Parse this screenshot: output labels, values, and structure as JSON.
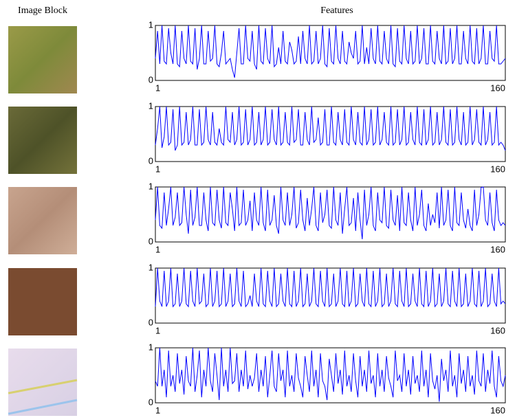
{
  "header": {
    "left": "Image Block",
    "right": "Features"
  },
  "chart_data": [
    {
      "type": "line",
      "xlim": [
        1,
        160
      ],
      "xticks": [
        1,
        160
      ],
      "ylim": [
        0,
        1
      ],
      "yticks": [
        0,
        1
      ],
      "series": [
        {
          "color": "#0000ff",
          "values": [
            0.4,
            0.9,
            0.3,
            1,
            0.35,
            0.3,
            0.95,
            0.5,
            0.3,
            1,
            0.3,
            0.25,
            0.9,
            0.4,
            0.3,
            1,
            0.35,
            0.3,
            0.95,
            0.2,
            0.4,
            1,
            0.3,
            0.3,
            0.9,
            0.35,
            0.4,
            1,
            0.3,
            0.25,
            0.5,
            0.9,
            0.3,
            0.35,
            0.4,
            0.2,
            0.05,
            0.5,
            0.95,
            0.3,
            0.3,
            1,
            0.4,
            0.35,
            0.9,
            0.3,
            0.2,
            1,
            0.35,
            0.3,
            0.95,
            0.4,
            0.3,
            1,
            0.25,
            0.3,
            0.6,
            0.3,
            0.9,
            0.35,
            0.3,
            0.7,
            0.55,
            0.3,
            0.35,
            0.8,
            0.3,
            0.9,
            0.4,
            0.3,
            1,
            0.3,
            0.35,
            0.9,
            0.3,
            0.4,
            1,
            0.3,
            0.25,
            0.95,
            0.35,
            0.3,
            1,
            0.4,
            0.3,
            0.9,
            0.35,
            0.3,
            0.7,
            0.5,
            0.4,
            0.9,
            0.3,
            0.35,
            1,
            0.3,
            0.6,
            0.3,
            0.95,
            0.4,
            0.3,
            1,
            0.35,
            0.3,
            0.9,
            0.4,
            0.3,
            1,
            0.3,
            0.25,
            0.95,
            0.35,
            0.3,
            1,
            0.4,
            0.3,
            0.9,
            0.3,
            0.35,
            1,
            0.3,
            0.4,
            0.95,
            0.3,
            0.3,
            1,
            0.35,
            0.3,
            0.9,
            0.4,
            0.3,
            1,
            0.3,
            0.35,
            0.95,
            0.3,
            0.4,
            1,
            0.3,
            0.3,
            0.9,
            0.4,
            0.3,
            1,
            0.35,
            0.3,
            0.95,
            0.3,
            0.4,
            1,
            0.3,
            0.3,
            0.9,
            0.4,
            0.35,
            1,
            0.3,
            0.3,
            0.35,
            0.4
          ]
        }
      ]
    },
    {
      "type": "line",
      "xlim": [
        1,
        160
      ],
      "xticks": [
        1,
        160
      ],
      "ylim": [
        0,
        1
      ],
      "yticks": [
        0,
        1
      ],
      "series": [
        {
          "color": "#0000ff",
          "values": [
            0.3,
            0.6,
            1,
            0.25,
            0.45,
            1,
            0.3,
            0.35,
            0.95,
            0.2,
            0.3,
            1,
            0.3,
            0.35,
            0.9,
            0.3,
            0.4,
            1,
            0.3,
            0.3,
            0.95,
            0.3,
            0.35,
            1,
            0.4,
            0.3,
            0.9,
            0.35,
            0.3,
            0.6,
            0.35,
            0.3,
            1,
            0.4,
            0.35,
            0.9,
            0.3,
            0.4,
            1,
            0.3,
            0.35,
            0.95,
            0.3,
            0.4,
            1,
            0.3,
            0.35,
            0.9,
            0.3,
            0.4,
            1,
            0.3,
            0.35,
            0.95,
            0.4,
            0.3,
            1,
            0.3,
            0.35,
            0.9,
            0.35,
            0.3,
            1,
            0.35,
            0.4,
            0.95,
            0.3,
            0.3,
            0.9,
            0.4,
            0.3,
            1,
            0.35,
            0.4,
            0.8,
            0.3,
            0.35,
            0.95,
            0.3,
            0.3,
            1,
            0.35,
            0.3,
            0.9,
            0.4,
            0.3,
            0.95,
            0.35,
            0.3,
            1,
            0.4,
            0.3,
            0.9,
            0.35,
            0.3,
            1,
            0.3,
            0.4,
            0.95,
            0.3,
            0.35,
            1,
            0.3,
            0.4,
            0.9,
            0.35,
            0.3,
            1,
            0.3,
            0.35,
            0.95,
            0.3,
            0.4,
            1,
            0.3,
            0.35,
            0.9,
            0.4,
            0.3,
            1,
            0.35,
            0.3,
            0.95,
            0.3,
            0.4,
            1,
            0.3,
            0.35,
            0.9,
            0.3,
            0.4,
            1,
            0.35,
            0.3,
            0.95,
            0.3,
            0.35,
            1,
            0.4,
            0.3,
            0.9,
            0.3,
            0.35,
            1,
            0.3,
            0.4,
            0.95,
            0.35,
            0.3,
            1,
            0.3,
            0.4,
            0.9,
            0.3,
            0.35,
            1,
            0.3,
            0.35,
            0.3,
            0.2
          ]
        }
      ]
    },
    {
      "type": "line",
      "xlim": [
        1,
        160
      ],
      "xticks": [
        1,
        160
      ],
      "ylim": [
        0,
        1
      ],
      "yticks": [
        0,
        1
      ],
      "series": [
        {
          "color": "#0000ff",
          "values": [
            0.4,
            1,
            0.3,
            0.25,
            0.9,
            0.3,
            0.6,
            1,
            0.3,
            0.45,
            0.9,
            0.3,
            0.35,
            1,
            0.5,
            0.15,
            0.95,
            0.3,
            0.45,
            1,
            0.3,
            0.3,
            0.9,
            0.4,
            0.2,
            1,
            0.35,
            0.3,
            0.95,
            0.4,
            0.25,
            1,
            0.35,
            0.3,
            0.9,
            0.6,
            0.2,
            1,
            0.3,
            0.35,
            0.95,
            0.3,
            0.4,
            0.75,
            0.2,
            0.9,
            0.4,
            0.3,
            1,
            0.35,
            0.2,
            0.95,
            0.3,
            0.4,
            0.85,
            0.3,
            0.15,
            1,
            0.4,
            0.3,
            0.9,
            0.3,
            0.5,
            1,
            0.25,
            0.35,
            0.95,
            0.4,
            0.2,
            0.8,
            0.3,
            0.6,
            1,
            0.3,
            0.2,
            0.9,
            0.35,
            0.5,
            0.95,
            0.3,
            0.25,
            1,
            0.4,
            0.3,
            0.9,
            0.15,
            0.6,
            1,
            0.3,
            0.35,
            0.8,
            0.2,
            0.9,
            0.4,
            0.05,
            0.95,
            0.3,
            0.5,
            1,
            0.3,
            0.2,
            0.9,
            0.4,
            0.35,
            1,
            0.3,
            0.25,
            0.95,
            0.4,
            0.3,
            0.85,
            0.2,
            1,
            0.35,
            0.3,
            0.9,
            0.4,
            0.2,
            1,
            0.3,
            0.5,
            0.95,
            0.3,
            0.2,
            0.7,
            0.3,
            0.5,
            0.35,
            0.9,
            0.25,
            1,
            0.3,
            0.4,
            0.95,
            0.3,
            0.2,
            1,
            0.35,
            0.3,
            0.9,
            0.4,
            0.25,
            0.6,
            0.3,
            0.2,
            0.95,
            0.3,
            0.5,
            0.99,
            1,
            0.4,
            0.3,
            0.9,
            0.35,
            0.2,
            0.95,
            0.4,
            0.3,
            0.35,
            0.3
          ]
        }
      ]
    },
    {
      "type": "line",
      "xlim": [
        1,
        160
      ],
      "xticks": [
        1,
        160
      ],
      "ylim": [
        0,
        1
      ],
      "yticks": [
        0,
        1
      ],
      "series": [
        {
          "color": "#0000ff",
          "values": [
            0.3,
            1,
            0.4,
            0.3,
            0.95,
            0.3,
            0.4,
            1,
            0.3,
            0.35,
            0.9,
            0.3,
            0.4,
            1,
            0.35,
            0.3,
            0.95,
            0.4,
            0.3,
            1,
            0.35,
            0.4,
            0.9,
            0.3,
            0.35,
            1,
            0.3,
            0.4,
            0.95,
            0.3,
            0.35,
            1,
            0.3,
            0.4,
            0.9,
            0.3,
            0.35,
            1,
            0.4,
            0.3,
            0.95,
            0.3,
            0.35,
            0.5,
            0.3,
            0.9,
            0.4,
            0.3,
            1,
            0.35,
            0.3,
            0.95,
            0.4,
            0.3,
            1,
            0.3,
            0.35,
            0.9,
            0.4,
            0.3,
            1,
            0.35,
            0.3,
            0.95,
            0.3,
            0.4,
            1,
            0.3,
            0.35,
            0.9,
            0.3,
            0.4,
            1,
            0.35,
            0.3,
            0.95,
            0.4,
            0.3,
            1,
            0.3,
            0.35,
            0.9,
            0.3,
            0.4,
            1,
            0.35,
            0.3,
            0.95,
            0.3,
            0.4,
            1,
            0.3,
            0.35,
            0.9,
            0.4,
            0.3,
            1,
            0.35,
            0.3,
            0.95,
            0.3,
            0.4,
            1,
            0.3,
            0.35,
            0.9,
            0.3,
            0.4,
            1,
            0.35,
            0.3,
            0.95,
            0.4,
            0.3,
            1,
            0.3,
            0.35,
            0.9,
            0.4,
            0.3,
            1,
            0.35,
            0.3,
            0.95,
            0.3,
            0.4,
            1,
            0.3,
            0.35,
            0.9,
            0.3,
            0.4,
            1,
            0.35,
            0.3,
            0.95,
            0.4,
            0.3,
            1,
            0.3,
            0.35,
            0.9,
            0.3,
            0.4,
            1,
            0.35,
            0.3,
            0.95,
            0.3,
            0.4,
            1,
            0.3,
            0.35,
            0.9,
            0.4,
            0.3,
            1,
            0.35,
            0.4,
            0.35
          ]
        }
      ]
    },
    {
      "type": "line",
      "xlim": [
        1,
        160
      ],
      "xticks": [
        1,
        160
      ],
      "ylim": [
        0,
        1
      ],
      "yticks": [
        0,
        1
      ],
      "series": [
        {
          "color": "#0000ff",
          "values": [
            0.4,
            0.3,
            1,
            0.3,
            0.6,
            0.1,
            0.95,
            0.3,
            0.5,
            0.2,
            0.9,
            0.35,
            0.6,
            0.15,
            0.85,
            0.4,
            0.3,
            1,
            0.2,
            0.5,
            0.95,
            0.1,
            0.6,
            0.3,
            1,
            0.4,
            0.2,
            0.9,
            0.5,
            0.05,
            1,
            0.3,
            0.6,
            0.2,
            1,
            0.35,
            0.4,
            0.9,
            0.2,
            0.6,
            0.3,
            0.95,
            0.25,
            0.5,
            0.3,
            0.45,
            0.9,
            0.2,
            0.6,
            0.3,
            0.85,
            0.1,
            0.5,
            0.95,
            0.3,
            0.2,
            0.9,
            0.4,
            0.6,
            0.1,
            0.95,
            0.3,
            0.5,
            0.2,
            0.9,
            0.45,
            0.3,
            0.1,
            0.85,
            0.5,
            0.2,
            0.95,
            0.3,
            0.6,
            0.1,
            0.9,
            0.4,
            0.3,
            0.05,
            0.8,
            0.5,
            0.2,
            0.9,
            0.35,
            0.6,
            0.15,
            0.95,
            0.3,
            0.5,
            0.2,
            0.9,
            0.4,
            0.1,
            0.85,
            0.3,
            0.6,
            0.2,
            0.95,
            0.35,
            0.5,
            0.1,
            0.9,
            0.3,
            0.6,
            0.2,
            0.85,
            0.45,
            0.3,
            0.1,
            0.95,
            0.4,
            0.5,
            0.2,
            0.9,
            0.3,
            0.6,
            0.15,
            0.85,
            0.35,
            0.5,
            0.2,
            0.95,
            0.3,
            0.6,
            0.1,
            0.9,
            0.4,
            0.25,
            0.5,
            0.02,
            0.8,
            0.4,
            0.6,
            0.2,
            0.95,
            0.3,
            0.5,
            0.1,
            0.9,
            0.35,
            0.6,
            0.2,
            0.85,
            0.3,
            0.5,
            0.15,
            0.95,
            0.4,
            0.3,
            0.9,
            0.2,
            0.6,
            0.35,
            0.95,
            0.3,
            0.1,
            0.85,
            0.4,
            0.3,
            0.5
          ]
        }
      ]
    }
  ]
}
